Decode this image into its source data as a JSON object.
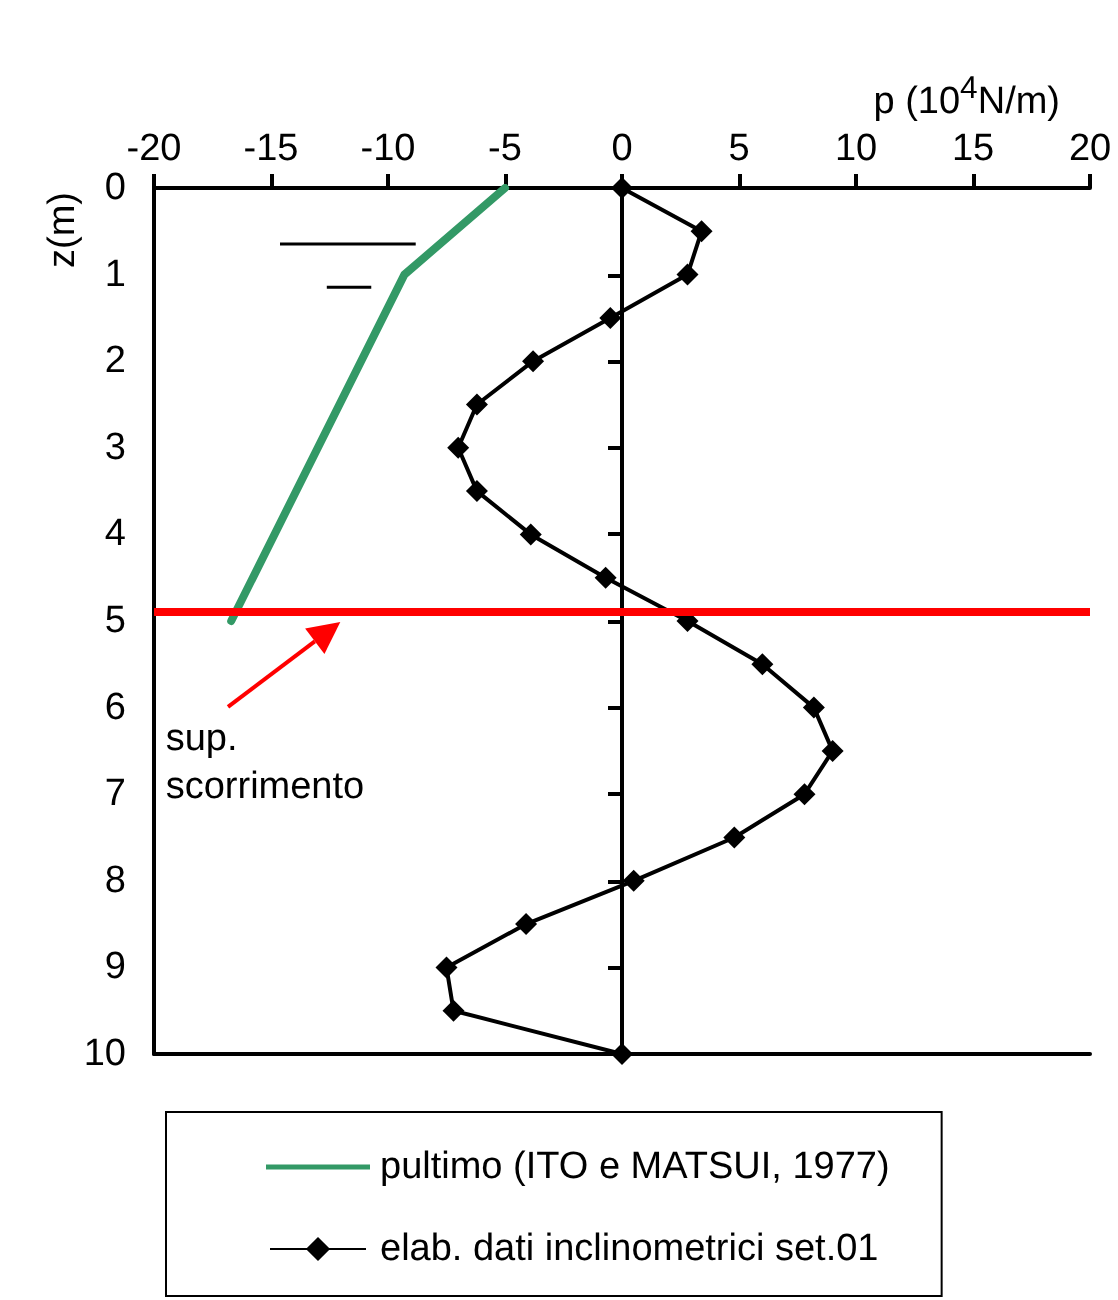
{
  "chart_data": {
    "type": "line",
    "xlabel": "p (10$^{4}$N/m)",
    "ylabel": "z(m)",
    "xlim": [
      -20,
      20
    ],
    "xticks": [
      -20,
      -15,
      -10,
      -5,
      0,
      5,
      10,
      15,
      20
    ],
    "ylim": [
      10,
      0
    ],
    "yticks": [
      0,
      1,
      2,
      3,
      4,
      5,
      6,
      7,
      8,
      9,
      10
    ],
    "legend": "bottom",
    "series": [
      {
        "name": "pultimo (ITO e MATSUI, 1977)",
        "color": "#339966",
        "marker": "none",
        "x": [
          -5,
          -9.3,
          -16.7
        ],
        "values": [
          0,
          1,
          5
        ]
      },
      {
        "name": "elab. dati inclinometrici set.01",
        "color": "#000000",
        "marker": "diamond",
        "x": [
          0,
          3.4,
          2.8,
          -0.5,
          -3.8,
          -6.2,
          -7.0,
          -6.2,
          -3.9,
          -0.7,
          2.8,
          6.0,
          8.2,
          9.0,
          7.8,
          4.8,
          0.5,
          -4.1,
          -7.5,
          -7.2,
          0
        ],
        "values": [
          0,
          0.5,
          1,
          1.5,
          2,
          2.5,
          3,
          3.5,
          4,
          4.5,
          5,
          5.5,
          6,
          6.5,
          7,
          7.5,
          8,
          8.5,
          9,
          9.5,
          10
        ]
      }
    ],
    "ref_lines": [
      {
        "axis": "y",
        "value": 4.9,
        "label": "sup. scorrimento",
        "color": "#ff0000"
      }
    ]
  }
}
